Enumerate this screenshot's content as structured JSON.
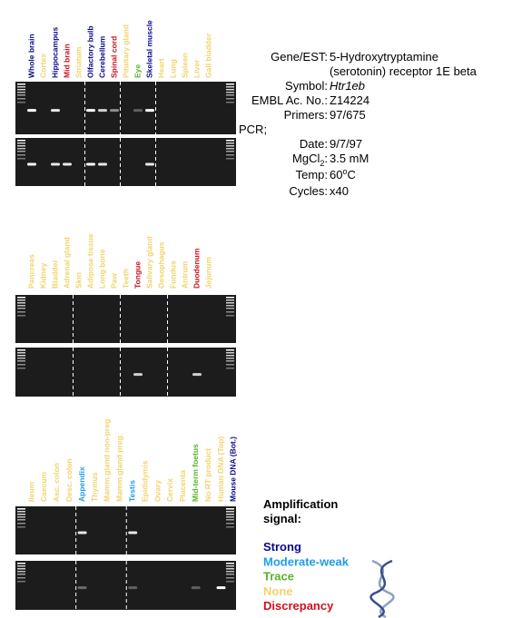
{
  "panels": [
    {
      "lanes": [
        {
          "label": "Whole brain",
          "color": "#0a0a8c"
        },
        {
          "label": "Cortex",
          "color": "#f2d36b"
        },
        {
          "label": "Hippocampus",
          "color": "#0a0a8c"
        },
        {
          "label": "Mid brain",
          "color": "#d0101e"
        },
        {
          "label": "Striatum",
          "color": "#f2d36b"
        },
        {
          "label": "Olfactory bulb",
          "color": "#0a0a8c"
        },
        {
          "label": "Cerebellum",
          "color": "#0a0a8c"
        },
        {
          "label": "Spinal cord",
          "color": "#d0101e"
        },
        {
          "label": "Pituitary gland",
          "color": "#f2d36b"
        },
        {
          "label": "Eye",
          "color": "#56b42a"
        },
        {
          "label": "Skeletal muscle",
          "color": "#0a0a8c"
        },
        {
          "label": "Heart",
          "color": "#f2d36b"
        },
        {
          "label": "Lung",
          "color": "#f2d36b"
        },
        {
          "label": "Spleen",
          "color": "#f2d36b"
        },
        {
          "label": "Liver",
          "color": "#f2d36b"
        },
        {
          "label": "Gall bladder",
          "color": "#f2d36b"
        }
      ]
    },
    {
      "lanes": [
        {
          "label": "Pancreas",
          "color": "#f2d36b"
        },
        {
          "label": "Kidney",
          "color": "#f2d36b"
        },
        {
          "label": "Bladder",
          "color": "#f2d36b"
        },
        {
          "label": "Adrenal gland",
          "color": "#f2d36b"
        },
        {
          "label": "Skin",
          "color": "#f2d36b"
        },
        {
          "label": "Adipose tissue",
          "color": "#f2d36b"
        },
        {
          "label": "Long bone",
          "color": "#f2d36b"
        },
        {
          "label": "Paw",
          "color": "#f2d36b"
        },
        {
          "label": "Teeth",
          "color": "#f2d36b"
        },
        {
          "label": "Tongue",
          "color": "#d0101e"
        },
        {
          "label": "Salivary gland",
          "color": "#f2d36b"
        },
        {
          "label": "Oesophagus",
          "color": "#f2d36b"
        },
        {
          "label": "Fundus",
          "color": "#f2d36b"
        },
        {
          "label": "Antrum",
          "color": "#f2d36b"
        },
        {
          "label": "Duodenum",
          "color": "#d0101e"
        },
        {
          "label": "Jejunum",
          "color": "#f2d36b"
        }
      ]
    },
    {
      "lanes": [
        {
          "label": "Ileum",
          "color": "#f2d36b"
        },
        {
          "label": "Caecum",
          "color": "#f2d36b"
        },
        {
          "label": "Asc. colon",
          "color": "#f2d36b"
        },
        {
          "label": "Desc. colon",
          "color": "#f2d36b"
        },
        {
          "label": "Appendix",
          "color": "#1f9ee6"
        },
        {
          "label": "Thymus",
          "color": "#f2d36b"
        },
        {
          "label": "Mamm.gland non-preg",
          "color": "#f2d36b"
        },
        {
          "label": "Mamm.gland preg.",
          "color": "#f2d36b"
        },
        {
          "label": "Testis",
          "color": "#1f9ee6"
        },
        {
          "label": "Epididymis",
          "color": "#f2d36b"
        },
        {
          "label": "Ovary",
          "color": "#f2d36b"
        },
        {
          "label": "Cervix",
          "color": "#f2d36b"
        },
        {
          "label": "Placenta",
          "color": "#f2d36b"
        },
        {
          "label": "Mid-term foetus",
          "color": "#56b42a"
        },
        {
          "label": "No RT product",
          "color": "#f2d36b"
        },
        {
          "label": "Human DNA (Top)",
          "color": "#f2d36b"
        },
        {
          "label": "Mouse DNA (Bot.)",
          "color": "#0a0a8c"
        }
      ]
    }
  ],
  "info": [
    {
      "label": "Gene/EST:",
      "value": "5-Hydroxytryptamine",
      "value2": "(serotonin) receptor 1E beta"
    },
    {
      "label": "Symbol:",
      "value": "Htr1eb"
    },
    {
      "label": "EMBL Ac. No.:",
      "value": "Z14224"
    },
    {
      "label": "Primers:",
      "value": "97/675"
    },
    {
      "heading": "PCR;"
    },
    {
      "label": "Date:",
      "value": "9/7/97"
    },
    {
      "label": "MgCl",
      "label_sub": "2",
      "label_end": ":",
      "value": "3.5 mM"
    },
    {
      "label": "Temp:",
      "value": "60",
      "value_sup": "o",
      "value_end": "C"
    },
    {
      "label": "Cycles:",
      "value": "x40"
    }
  ],
  "legend": {
    "title_lines": [
      "Amplification",
      "signal:"
    ],
    "items": [
      {
        "name": "Strong",
        "color": "#0a0a8c"
      },
      {
        "name": "Moderate-weak",
        "color": "#1f9ee6"
      },
      {
        "name": "Trace",
        "color": "#56b42a"
      },
      {
        "name": "None",
        "color": "#f2d36b"
      },
      {
        "name": "Discrepancy",
        "color": "#d0101e"
      }
    ]
  }
}
